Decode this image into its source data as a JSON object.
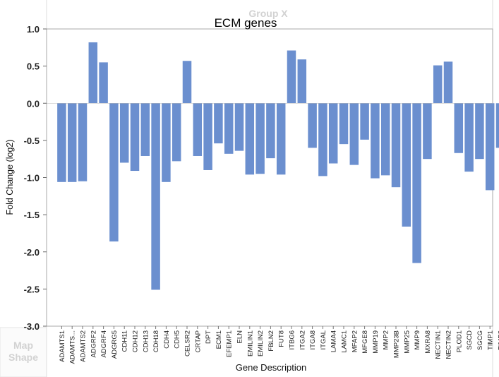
{
  "background_labels": {
    "group_x": "Group X",
    "map_shape_line1": "Map",
    "map_shape_line2": "Shape"
  },
  "chart_data": {
    "type": "bar",
    "title": "ECM genes",
    "xlabel": "Gene Description",
    "ylabel": "Fold Change (log2)",
    "ylim": [
      -3.0,
      1.0
    ],
    "yticks": [
      "1.0",
      "0.5",
      "0.0",
      "-0.5",
      "-1.0",
      "-1.5",
      "-2.0",
      "-2.5",
      "-3.0"
    ],
    "grid": false,
    "bar_color": "#6b8fcf",
    "categories": [
      "ADAMTS1",
      "ADAMTS...",
      "ADAMTS2",
      "ADGRF2",
      "ADGRF4",
      "ADGRG5",
      "CDH11",
      "CDH12",
      "CDH13",
      "CDH18",
      "CDH4",
      "CDH5",
      "CELSR2",
      "CRTAP",
      "DPT",
      "ECM1",
      "EFEMP1",
      "ELN",
      "EMILIN1",
      "EMILIN2",
      "FBLN2",
      "FUT8",
      "ITBG6",
      "ITGA2",
      "ITGA8",
      "ITGAL",
      "LAMA4",
      "LAMC1",
      "MFAP2",
      "MFGE8",
      "MMP19",
      "MMP2",
      "MMP23B",
      "MMP25",
      "MMP9",
      "MXRA8",
      "NECTIN1",
      "NECTIN2",
      "PLOD1",
      "SGCD",
      "SGCG",
      "TIMP1",
      "TIMP2"
    ],
    "values": [
      -1.06,
      -1.06,
      -1.05,
      0.82,
      0.55,
      -1.86,
      -0.8,
      -0.91,
      -0.71,
      -2.51,
      -1.06,
      -0.78,
      0.57,
      -0.71,
      -0.9,
      -0.54,
      -0.68,
      -0.64,
      -0.96,
      -0.95,
      -0.74,
      -0.96,
      0.71,
      0.59,
      -0.6,
      -0.98,
      -0.81,
      -0.55,
      -0.83,
      -0.49,
      -1.01,
      -0.97,
      -1.13,
      -1.66,
      -2.15,
      -0.75,
      0.51,
      0.56,
      -0.67,
      -0.92,
      -0.75,
      -1.17,
      -0.6
    ]
  }
}
